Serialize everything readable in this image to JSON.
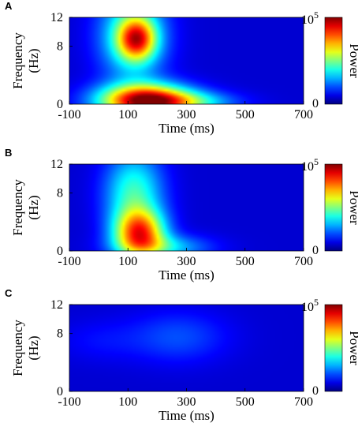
{
  "colors": {
    "low": "#0a1ba6",
    "high": "#e21b10"
  },
  "chart_data": [
    {
      "type": "heatmap",
      "panel_label": "A",
      "x_ticks": [
        "-100",
        "100",
        "300",
        "500",
        "700"
      ],
      "y_ticks": [
        "0",
        "8",
        "12"
      ],
      "xlim": [
        -100,
        700
      ],
      "ylim": [
        0,
        12
      ],
      "xlabel": "Time (ms)",
      "ylabel": "Frequency (Hz)",
      "colorbar": {
        "label": "Power",
        "max_label": "10",
        "max_exp": "5",
        "min_label": "0",
        "colormap": "jet"
      },
      "blobs": [
        {
          "t": 130,
          "f": 9.0,
          "st": 45,
          "sf": 2.0,
          "amp": 0.55
        },
        {
          "t": 160,
          "f": 0.5,
          "st": 110,
          "sf": 1.6,
          "amp": 0.85
        },
        {
          "t": 115,
          "f": 9.5,
          "st": 80,
          "sf": 4.5,
          "amp": 0.35
        },
        {
          "t": 300,
          "f": 0.3,
          "st": 120,
          "sf": 1.0,
          "amp": 0.25
        }
      ]
    },
    {
      "type": "heatmap",
      "panel_label": "B",
      "x_ticks": [
        "-100",
        "100",
        "300",
        "500",
        "700"
      ],
      "y_ticks": [
        "0",
        "8",
        "12"
      ],
      "xlim": [
        -100,
        700
      ],
      "ylim": [
        0,
        12
      ],
      "xlabel": "Time (ms)",
      "ylabel": "Frequency (Hz)",
      "colorbar": {
        "label": "Power",
        "max_label": "10",
        "max_exp": "5",
        "min_label": "0",
        "colormap": "jet"
      },
      "blobs": [
        {
          "t": 140,
          "f": 2.5,
          "st": 60,
          "sf": 2.2,
          "amp": 0.65
        },
        {
          "t": 120,
          "f": 8.0,
          "st": 70,
          "sf": 4.0,
          "amp": 0.35
        },
        {
          "t": 220,
          "f": 0.5,
          "st": 110,
          "sf": 1.2,
          "amp": 0.25
        }
      ]
    },
    {
      "type": "heatmap",
      "panel_label": "C",
      "x_ticks": [
        "-100",
        "100",
        "300",
        "500",
        "700"
      ],
      "y_ticks": [
        "0",
        "8",
        "12"
      ],
      "xlim": [
        -100,
        700
      ],
      "ylim": [
        0,
        12
      ],
      "xlabel": "Time (ms)",
      "ylabel": "Frequency (Hz)",
      "colorbar": {
        "label": "Power",
        "max_label": "10",
        "max_exp": "5",
        "min_label": "0",
        "colormap": "jet"
      },
      "blobs": [
        {
          "t": 270,
          "f": 7.5,
          "st": 120,
          "sf": 2.5,
          "amp": 0.12
        },
        {
          "t": 0,
          "f": 7.0,
          "st": 100,
          "sf": 2.0,
          "amp": 0.05
        }
      ]
    }
  ]
}
